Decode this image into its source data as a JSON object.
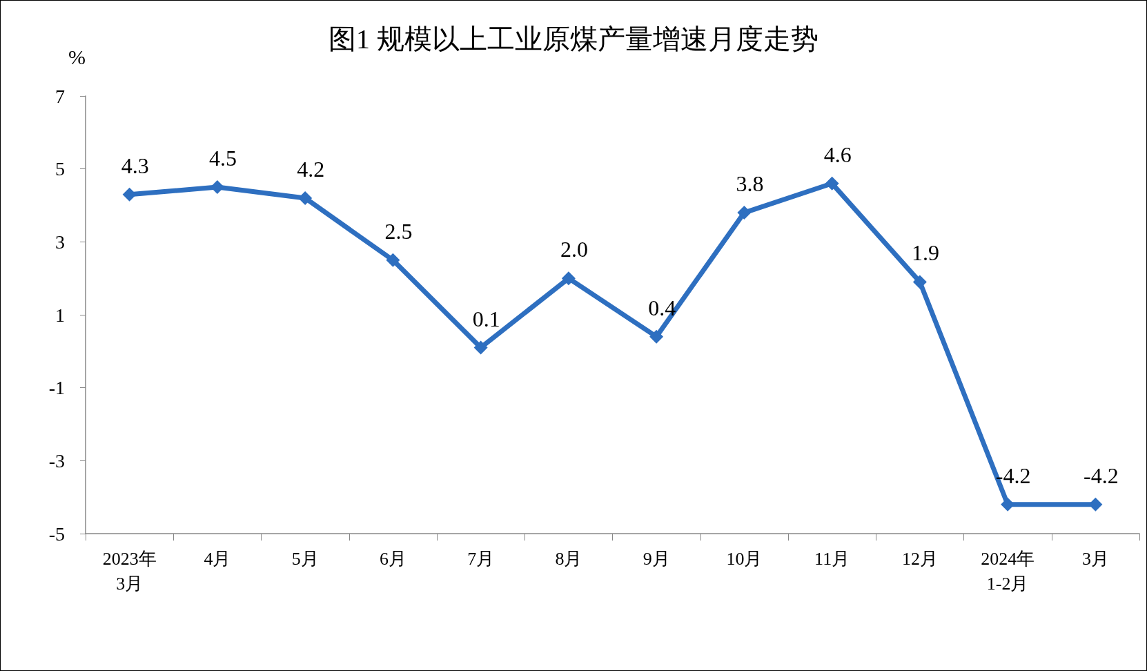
{
  "chart_data": {
    "type": "line",
    "title": "图1 规模以上工业原煤产量增速月度走势",
    "ylabel": "%",
    "categories": [
      "2023年\n3月",
      "4月",
      "5月",
      "6月",
      "7月",
      "8月",
      "9月",
      "10月",
      "11月",
      "12月",
      "2024年\n1-2月",
      "3月"
    ],
    "series": [
      {
        "color": "#2e6fc0",
        "values": [
          4.3,
          4.5,
          4.2,
          2.5,
          0.1,
          2.0,
          0.4,
          3.8,
          4.6,
          1.9,
          -4.2,
          -4.2
        ],
        "value_labels": [
          "4.3",
          "4.5",
          "4.2",
          "2.5",
          "0.1",
          "2.0",
          "0.4",
          "3.8",
          "4.6",
          "1.9",
          "-4.2",
          "-4.2"
        ]
      }
    ],
    "ylim": [
      -5,
      7
    ],
    "yticks": [
      -5,
      -3,
      -1,
      1,
      3,
      5,
      7
    ],
    "grid": false,
    "marker": "diamond",
    "line_style": "solid"
  }
}
